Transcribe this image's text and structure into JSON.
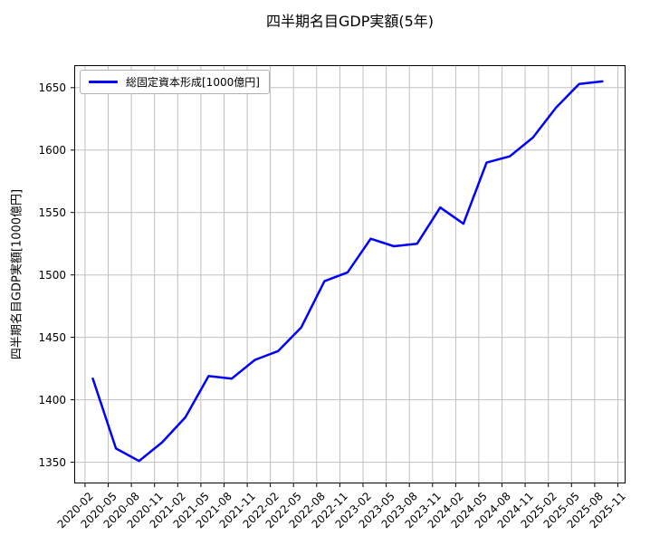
{
  "title": "四半期名目GDP実額(5年)",
  "colors": {
    "line": "#0000ff",
    "grid": "#c0c0c0",
    "spine": "#000000",
    "text": "#000000",
    "legend_border": "#b0b0b0",
    "background": "#ffffff"
  },
  "chart_data": {
    "type": "line",
    "title": "四半期名目GDP実額(5年)",
    "xlabel": "",
    "ylabel": "四半期名目GDP実額[1000億円]",
    "grid": true,
    "legend": {
      "position": "upper-left",
      "entries": [
        "総固定資本形成[1000億円]"
      ]
    },
    "y_ticks": [
      1350,
      1400,
      1450,
      1500,
      1550,
      1600,
      1650
    ],
    "ylim": [
      1333,
      1668
    ],
    "xlim_months": [
      -0.4,
      71.0
    ],
    "x_tick_labels": [
      "2020-02",
      "2020-05",
      "2020-08",
      "2020-11",
      "2021-02",
      "2021-05",
      "2021-08",
      "2021-11",
      "2022-02",
      "2022-05",
      "2022-08",
      "2022-11",
      "2023-02",
      "2023-05",
      "2023-08",
      "2023-11",
      "2024-02",
      "2024-05",
      "2024-08",
      "2024-11",
      "2025-02",
      "2025-05",
      "2025-08",
      "2025-11"
    ],
    "series": [
      {
        "name": "総固定資本形成[1000億円]",
        "color": "#0000ff",
        "x": [
          "2020-03",
          "2020-06",
          "2020-09",
          "2020-12",
          "2021-03",
          "2021-06",
          "2021-09",
          "2021-12",
          "2022-03",
          "2022-06",
          "2022-09",
          "2022-12",
          "2023-03",
          "2023-06",
          "2023-09",
          "2023-12",
          "2024-03",
          "2024-06",
          "2024-09",
          "2024-12",
          "2025-03",
          "2025-06",
          "2025-09"
        ],
        "values": [
          1417,
          1361,
          1351,
          1366,
          1386,
          1419,
          1417,
          1432,
          1439,
          1458,
          1495,
          1502,
          1529,
          1523,
          1525,
          1554,
          1541,
          1590,
          1595,
          1610,
          1634,
          1653,
          1655
        ]
      }
    ]
  }
}
